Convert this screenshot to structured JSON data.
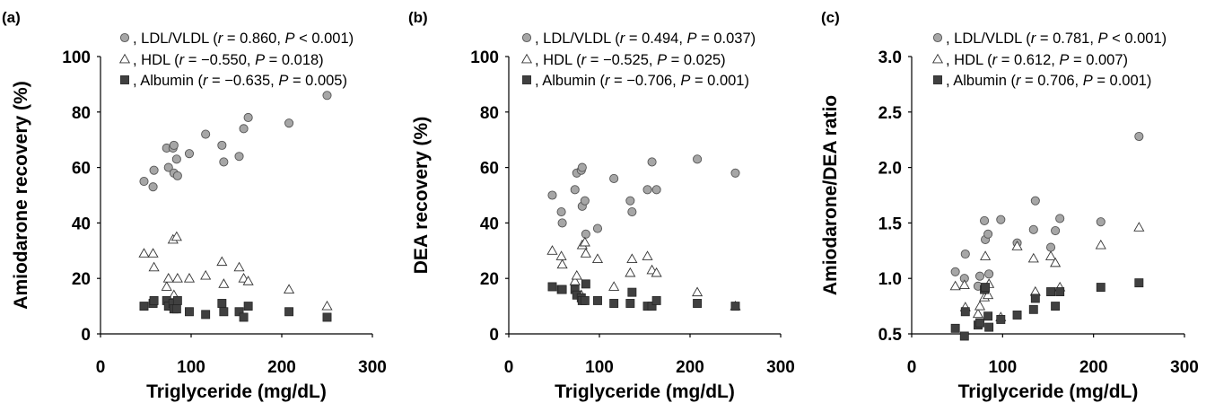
{
  "chart_data": [
    {
      "type": "scatter",
      "panel": "(a)",
      "xlabel": "Triglyceride (mg/dL)",
      "ylabel": "Amiodarone recovery (%)",
      "xlim": [
        0,
        300
      ],
      "ylim": [
        0,
        100
      ],
      "xticks": [
        0,
        100,
        200,
        300
      ],
      "yticks": [
        0,
        20,
        40,
        60,
        80,
        100
      ],
      "ytick_labels": [
        "0",
        "20",
        "40",
        "60",
        "80",
        "100"
      ],
      "grid": false,
      "legend_position": "top",
      "series": [
        {
          "name": "LDL/VLDL",
          "stat": [
            ", LDL/VLDL (",
            "r",
            " = 0.860, ",
            "P",
            " < 0.001)"
          ],
          "marker": "circle",
          "color": "#a6a6a6",
          "points": [
            [
              48,
              55
            ],
            [
              58,
              53
            ],
            [
              59,
              59
            ],
            [
              73,
              67
            ],
            [
              75,
              60
            ],
            [
              80,
              67
            ],
            [
              81,
              68
            ],
            [
              81,
              58
            ],
            [
              84,
              63
            ],
            [
              85,
              57
            ],
            [
              98,
              65
            ],
            [
              116,
              72
            ],
            [
              134,
              68
            ],
            [
              136,
              62
            ],
            [
              153,
              64
            ],
            [
              158,
              74
            ],
            [
              163,
              78
            ],
            [
              208,
              76
            ],
            [
              250,
              86
            ]
          ]
        },
        {
          "name": "HDL",
          "stat": [
            ", HDL (",
            "r",
            " = −0.550, ",
            "P",
            " = 0.018)"
          ],
          "marker": "triangle",
          "color": "#ffffff",
          "points": [
            [
              48,
              29
            ],
            [
              58,
              29
            ],
            [
              59,
              24
            ],
            [
              73,
              17
            ],
            [
              75,
              20
            ],
            [
              80,
              34
            ],
            [
              81,
              14
            ],
            [
              84,
              35
            ],
            [
              85,
              20
            ],
            [
              98,
              20
            ],
            [
              116,
              21
            ],
            [
              134,
              26
            ],
            [
              136,
              18
            ],
            [
              153,
              24
            ],
            [
              158,
              20
            ],
            [
              163,
              19
            ],
            [
              208,
              16
            ],
            [
              250,
              10
            ]
          ]
        },
        {
          "name": "Albumin",
          "stat": [
            ", Albumin (",
            "r",
            " = −0.635, ",
            "P",
            " = 0.005)"
          ],
          "marker": "square",
          "color": "#404040",
          "points": [
            [
              48,
              10
            ],
            [
              58,
              11
            ],
            [
              59,
              12
            ],
            [
              73,
              12
            ],
            [
              75,
              10
            ],
            [
              80,
              11
            ],
            [
              81,
              9
            ],
            [
              84,
              9
            ],
            [
              85,
              12
            ],
            [
              98,
              8
            ],
            [
              116,
              7
            ],
            [
              134,
              11
            ],
            [
              136,
              8
            ],
            [
              153,
              8
            ],
            [
              158,
              6
            ],
            [
              163,
              10
            ],
            [
              208,
              8
            ],
            [
              250,
              6
            ]
          ]
        }
      ]
    },
    {
      "type": "scatter",
      "panel": "(b)",
      "xlabel": "Triglyceride (mg/dL)",
      "ylabel": "DEA recovery (%)",
      "xlim": [
        0,
        300
      ],
      "ylim": [
        0,
        100
      ],
      "xticks": [
        0,
        100,
        200,
        300
      ],
      "yticks": [
        0,
        20,
        40,
        60,
        80,
        100
      ],
      "ytick_labels": [
        "0",
        "20",
        "40",
        "60",
        "80",
        "100"
      ],
      "grid": false,
      "legend_position": "top",
      "series": [
        {
          "name": "LDL/VLDL",
          "stat": [
            ", LDL/VLDL (",
            "r",
            " = 0.494, ",
            "P",
            " = 0.037)"
          ],
          "marker": "circle",
          "color": "#a6a6a6",
          "points": [
            [
              48,
              50
            ],
            [
              58,
              44
            ],
            [
              59,
              40
            ],
            [
              73,
              52
            ],
            [
              75,
              58
            ],
            [
              80,
              59
            ],
            [
              81,
              60
            ],
            [
              81,
              46
            ],
            [
              84,
              48
            ],
            [
              85,
              36
            ],
            [
              98,
              38
            ],
            [
              116,
              56
            ],
            [
              134,
              48
            ],
            [
              136,
              44
            ],
            [
              153,
              52
            ],
            [
              158,
              62
            ],
            [
              163,
              52
            ],
            [
              208,
              63
            ],
            [
              250,
              58
            ]
          ]
        },
        {
          "name": "HDL",
          "stat": [
            ", HDL (",
            "r",
            " = −0.525, ",
            "P",
            " = 0.025)"
          ],
          "marker": "triangle",
          "color": "#ffffff",
          "points": [
            [
              48,
              30
            ],
            [
              58,
              28
            ],
            [
              59,
              25
            ],
            [
              73,
              19
            ],
            [
              75,
              21
            ],
            [
              80,
              14
            ],
            [
              81,
              32
            ],
            [
              84,
              33
            ],
            [
              85,
              29
            ],
            [
              98,
              27
            ],
            [
              116,
              17
            ],
            [
              134,
              22
            ],
            [
              136,
              27
            ],
            [
              153,
              28
            ],
            [
              158,
              23
            ],
            [
              163,
              22
            ],
            [
              208,
              15
            ],
            [
              250,
              10
            ]
          ]
        },
        {
          "name": "Albumin",
          "stat": [
            ", Albumin (",
            "r",
            " = −0.706, ",
            "P",
            " = 0.001)"
          ],
          "marker": "square",
          "color": "#404040",
          "points": [
            [
              48,
              17
            ],
            [
              58,
              16
            ],
            [
              59,
              16
            ],
            [
              73,
              16
            ],
            [
              75,
              14
            ],
            [
              80,
              13
            ],
            [
              81,
              12
            ],
            [
              84,
              12
            ],
            [
              85,
              18
            ],
            [
              98,
              12
            ],
            [
              116,
              11
            ],
            [
              134,
              11
            ],
            [
              136,
              15
            ],
            [
              153,
              10
            ],
            [
              158,
              10
            ],
            [
              163,
              12
            ],
            [
              208,
              11
            ],
            [
              250,
              10
            ]
          ]
        }
      ]
    },
    {
      "type": "scatter",
      "panel": "(c)",
      "xlabel": "Triglyceride (mg/dL)",
      "ylabel": "Amiodarone/DEA ratio",
      "xlim": [
        0,
        300
      ],
      "ylim": [
        0.5,
        3.0
      ],
      "xticks": [
        0,
        100,
        200,
        300
      ],
      "yticks": [
        0.5,
        1.0,
        1.5,
        2.0,
        2.5,
        3.0
      ],
      "ytick_labels": [
        "0.5",
        "1.0",
        "1.5",
        "2.0",
        "2.5",
        "3.0"
      ],
      "grid": false,
      "legend_position": "top",
      "series": [
        {
          "name": "LDL/VLDL",
          "stat": [
            ", LDL/VLDL (",
            "r",
            " = 0.781, ",
            "P",
            " < 0.001)"
          ],
          "marker": "circle",
          "color": "#a6a6a6",
          "points": [
            [
              48,
              1.06
            ],
            [
              58,
              1.0
            ],
            [
              59,
              1.22
            ],
            [
              73,
              0.93
            ],
            [
              75,
              1.02
            ],
            [
              80,
              1.52
            ],
            [
              81,
              1.35
            ],
            [
              84,
              1.4
            ],
            [
              85,
              1.04
            ],
            [
              98,
              1.53
            ],
            [
              116,
              1.32
            ],
            [
              134,
              1.44
            ],
            [
              136,
              1.7
            ],
            [
              153,
              1.28
            ],
            [
              158,
              1.43
            ],
            [
              163,
              1.54
            ],
            [
              208,
              1.51
            ],
            [
              250,
              2.28
            ]
          ]
        },
        {
          "name": "HDL",
          "stat": [
            ", HDL (",
            "r",
            " = 0.612, ",
            "P",
            " = 0.007)"
          ],
          "marker": "triangle",
          "color": "#ffffff",
          "points": [
            [
              48,
              0.93
            ],
            [
              58,
              0.94
            ],
            [
              59,
              0.74
            ],
            [
              73,
              0.68
            ],
            [
              75,
              0.75
            ],
            [
              80,
              0.83
            ],
            [
              81,
              1.2
            ],
            [
              84,
              0.85
            ],
            [
              85,
              0.95
            ],
            [
              98,
              0.65
            ],
            [
              116,
              1.29
            ],
            [
              134,
              1.18
            ],
            [
              136,
              0.88
            ],
            [
              153,
              1.2
            ],
            [
              158,
              1.14
            ],
            [
              163,
              0.92
            ],
            [
              208,
              1.3
            ],
            [
              250,
              1.46
            ]
          ]
        },
        {
          "name": "Albumin",
          "stat": [
            ", Albumin (",
            "r",
            " = 0.706, ",
            "P",
            " = 0.001)"
          ],
          "marker": "square",
          "color": "#404040",
          "points": [
            [
              48,
              0.55
            ],
            [
              58,
              0.48
            ],
            [
              59,
              0.7
            ],
            [
              73,
              0.58
            ],
            [
              75,
              0.6
            ],
            [
              80,
              0.9
            ],
            [
              81,
              0.92
            ],
            [
              84,
              0.66
            ],
            [
              85,
              0.56
            ],
            [
              98,
              0.63
            ],
            [
              116,
              0.67
            ],
            [
              134,
              0.72
            ],
            [
              136,
              0.82
            ],
            [
              153,
              0.88
            ],
            [
              158,
              0.75
            ],
            [
              163,
              0.88
            ],
            [
              208,
              0.92
            ],
            [
              250,
              0.96
            ]
          ]
        }
      ]
    }
  ]
}
